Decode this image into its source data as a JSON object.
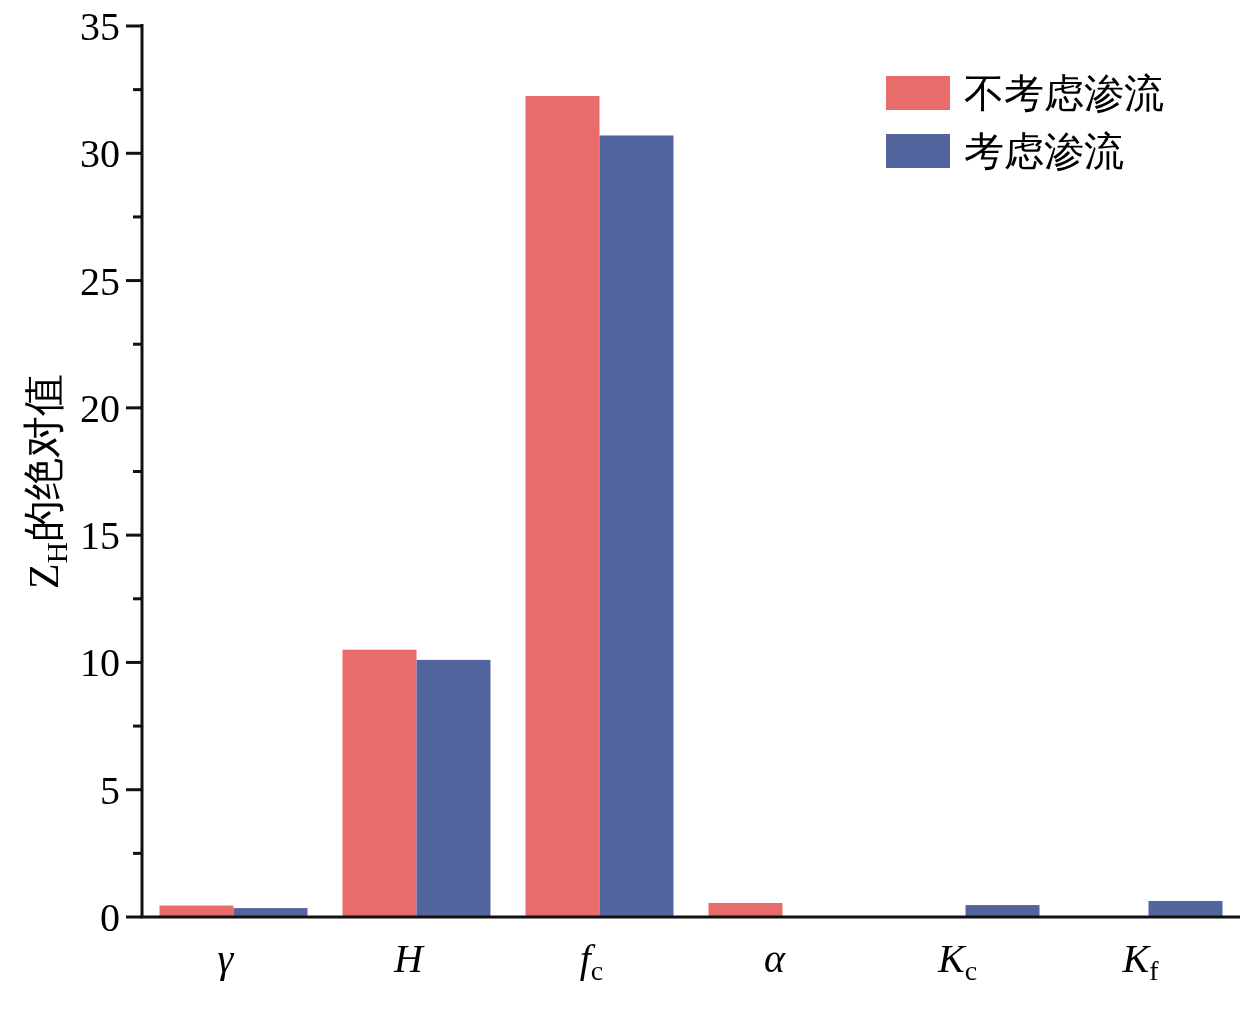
{
  "chart_data": {
    "type": "bar",
    "ylabel": "Z$_{H}$的绝对值",
    "categories": [
      "γ",
      "H",
      "f$_{c}$",
      "α",
      "K$_{c}$",
      "K$_{f}$"
    ],
    "series": [
      {
        "name": "不考虑渗流",
        "color": "#e86c6b",
        "values": [
          0.45,
          10.5,
          32.25,
          0.55,
          null,
          null
        ]
      },
      {
        "name": "考虑渗流",
        "color": "#52659f",
        "values": [
          0.35,
          10.1,
          30.7,
          null,
          0.47,
          0.63
        ]
      }
    ],
    "ylim": [
      0,
      35
    ],
    "yticks": [
      0,
      5,
      10,
      15,
      20,
      25,
      30,
      35
    ],
    "legend": "top right"
  }
}
